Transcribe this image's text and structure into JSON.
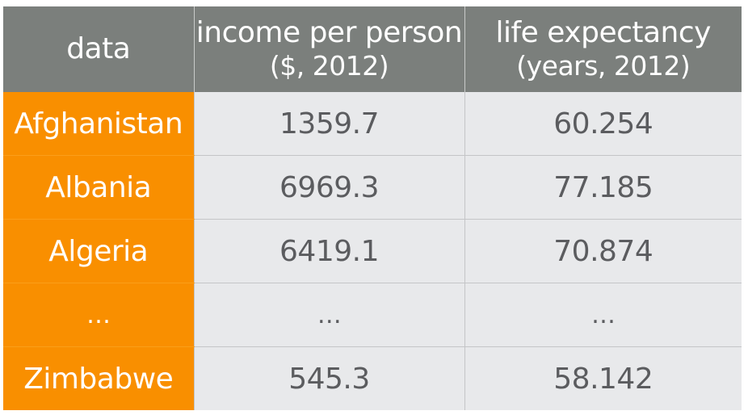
{
  "chart_data": {
    "type": "table",
    "corner_label": "data",
    "columns": [
      {
        "title": "income per person",
        "subtitle": "($, 2012)"
      },
      {
        "title": "life expectancy",
        "subtitle": "(years, 2012)"
      }
    ],
    "rows": [
      {
        "label": "Afghanistan",
        "values": [
          "1359.7",
          "60.254"
        ]
      },
      {
        "label": "Albania",
        "values": [
          "6969.3",
          "77.185"
        ]
      },
      {
        "label": "Algeria",
        "values": [
          "6419.1",
          "70.874"
        ]
      },
      {
        "label": "…",
        "values": [
          "…",
          "…"
        ]
      },
      {
        "label": "Zimbabwe",
        "values": [
          "545.3",
          "58.142"
        ]
      }
    ],
    "colors": {
      "header_bg": "#7b7f7c",
      "row_label_bg": "#f98f00",
      "cell_bg": "#e8e9eb",
      "cell_text": "#5b5c5f"
    }
  }
}
